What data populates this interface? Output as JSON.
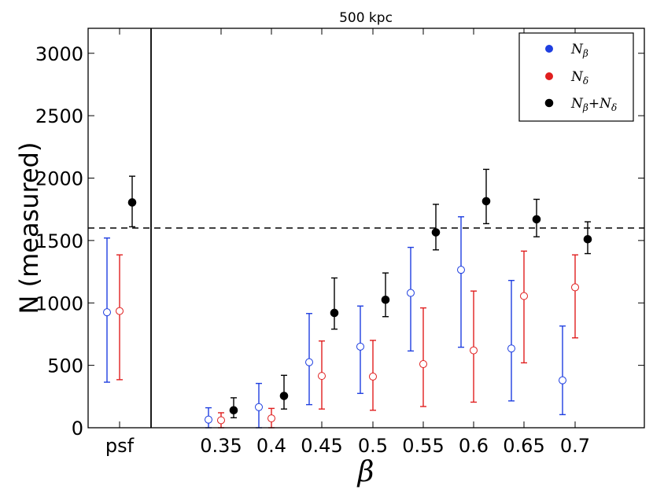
{
  "chart_data": {
    "type": "scatter",
    "title": "500 kpc",
    "xlabel": "β",
    "ylabel": "N (measured)",
    "ylim": [
      0,
      3200
    ],
    "yticks": [
      0,
      500,
      1000,
      1500,
      2000,
      2500,
      3000
    ],
    "categories": [
      "psf",
      "0.35",
      "0.4",
      "0.45",
      "0.5",
      "0.55",
      "0.6",
      "0.65",
      "0.7"
    ],
    "reference_line": 1600,
    "legend_position": "top-right",
    "series": [
      {
        "name": "N_beta",
        "legend_main": "N",
        "legend_sub": "β",
        "color": "#1f3fe0",
        "marker": "open-circle",
        "values": [
          925,
          65,
          165,
          525,
          650,
          1080,
          1265,
          635,
          380
        ],
        "lower": [
          365,
          0,
          0,
          185,
          275,
          615,
          645,
          215,
          105
        ],
        "upper": [
          1520,
          160,
          355,
          915,
          975,
          1445,
          1690,
          1180,
          815
        ]
      },
      {
        "name": "N_delta",
        "legend_main": "N",
        "legend_sub": "δ",
        "color": "#e01f1f",
        "marker": "open-circle",
        "values": [
          935,
          60,
          75,
          415,
          410,
          510,
          620,
          1055,
          1125
        ],
        "lower": [
          385,
          0,
          0,
          150,
          140,
          170,
          205,
          520,
          720
        ],
        "upper": [
          1385,
          120,
          155,
          695,
          700,
          960,
          1095,
          1415,
          1385
        ]
      },
      {
        "name": "N_beta+N_delta",
        "legend_main": "N",
        "legend_sub": "β",
        "legend_plus": "+N",
        "legend_sub2": "δ",
        "color": "#000000",
        "marker": "filled-circle",
        "values": [
          1805,
          140,
          255,
          920,
          1025,
          1565,
          1815,
          1670,
          1510
        ],
        "lower": [
          1610,
          80,
          150,
          790,
          890,
          1425,
          1635,
          1530,
          1395
        ],
        "upper": [
          2015,
          240,
          420,
          1200,
          1240,
          1790,
          2070,
          1830,
          1650
        ]
      }
    ]
  }
}
